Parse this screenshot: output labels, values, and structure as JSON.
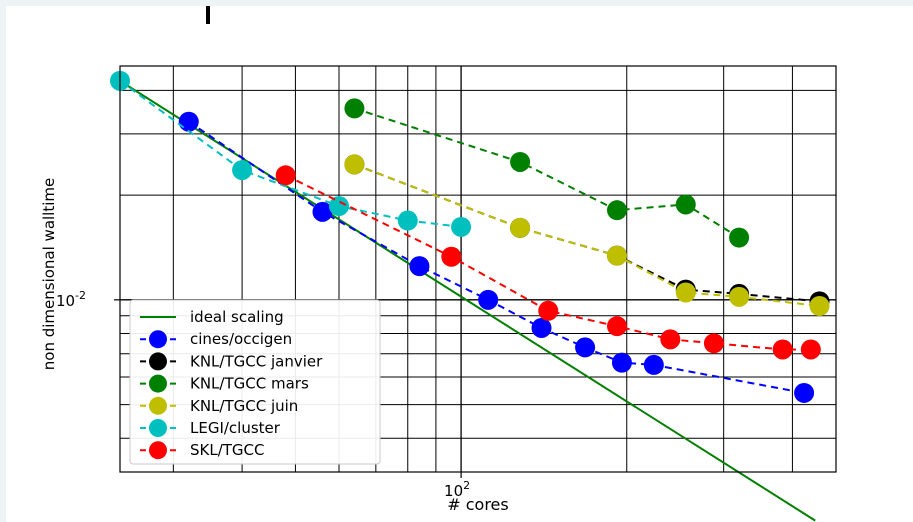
{
  "chart_data": {
    "type": "line",
    "xlabel": "# cores",
    "ylabel": "non dimensional walltime",
    "x_scale": "log",
    "y_scale": "log",
    "xlim": [
      24,
      480
    ],
    "ylim": [
      0.0032,
      0.047
    ],
    "grid": "major and minor",
    "legend_position": "lower-left",
    "x_tick_label": "10^2",
    "y_tick_label": "10^-2",
    "x_ticks": [
      100
    ],
    "y_ticks": [
      0.01
    ],
    "series": [
      {
        "name": "ideal scaling",
        "style": "line",
        "color": "#008000",
        "points": [
          [
            24,
            0.0426
          ],
          [
            440,
            0.00232
          ]
        ]
      },
      {
        "name": "cines/occigen",
        "style": "marker-dashed",
        "color": "#0000ff",
        "points": [
          [
            32,
            0.0325
          ],
          [
            56,
            0.0179
          ],
          [
            84,
            0.0125
          ],
          [
            112,
            0.01
          ],
          [
            140,
            0.0083
          ],
          [
            168,
            0.0073
          ],
          [
            196,
            0.0066
          ],
          [
            224,
            0.0065
          ],
          [
            420,
            0.0054
          ]
        ]
      },
      {
        "name": "KNL/TGCC janvier",
        "style": "marker-dashed",
        "color": "#000000",
        "points": [
          [
            64,
            0.0245
          ],
          [
            128,
            0.0161
          ],
          [
            192,
            0.0134
          ],
          [
            256,
            0.0107
          ],
          [
            320,
            0.0104
          ],
          [
            448,
            0.0099
          ]
        ]
      },
      {
        "name": "KNL/TGCC mars",
        "style": "marker-dashed",
        "color": "#008000",
        "points": [
          [
            64,
            0.0355
          ],
          [
            128,
            0.0249
          ],
          [
            192,
            0.0181
          ],
          [
            256,
            0.0188
          ],
          [
            320,
            0.0151
          ]
        ]
      },
      {
        "name": "KNL/TGCC juin",
        "style": "marker-dashed",
        "color": "#bfbf00",
        "points": [
          [
            64,
            0.0245
          ],
          [
            128,
            0.0161
          ],
          [
            192,
            0.0134
          ],
          [
            256,
            0.0105
          ],
          [
            320,
            0.0102
          ],
          [
            448,
            0.0096
          ]
        ]
      },
      {
        "name": "LEGI/cluster",
        "style": "marker-dashed",
        "color": "#00bfbf",
        "points": [
          [
            24,
            0.0426
          ],
          [
            40,
            0.0236
          ],
          [
            60,
            0.0186
          ],
          [
            80,
            0.0169
          ],
          [
            100,
            0.0162
          ]
        ]
      },
      {
        "name": "SKL/TGCC",
        "style": "marker-dashed",
        "color": "#ff0000",
        "points": [
          [
            48,
            0.0228
          ],
          [
            96,
            0.0133
          ],
          [
            144,
            0.0093
          ],
          [
            192,
            0.0084
          ],
          [
            240,
            0.0077
          ],
          [
            288,
            0.0075
          ],
          [
            384,
            0.0072
          ],
          [
            432,
            0.0072
          ]
        ]
      }
    ]
  }
}
